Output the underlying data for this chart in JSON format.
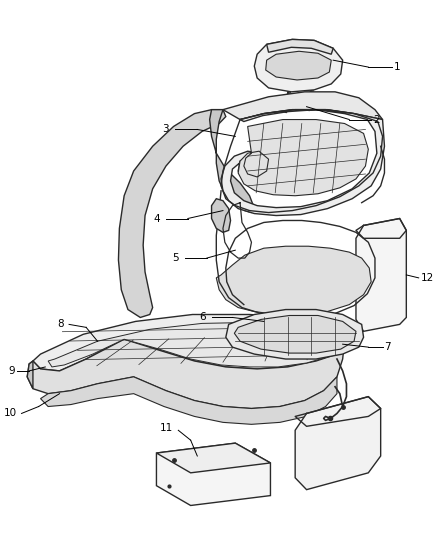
{
  "background_color": "#ffffff",
  "line_color": "#2a2a2a",
  "label_color": "#000000",
  "figsize": [
    4.38,
    5.33
  ],
  "dpi": 100,
  "font_size": 7.5
}
